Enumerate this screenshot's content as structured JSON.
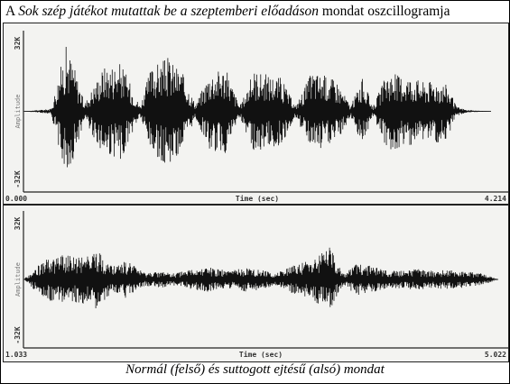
{
  "page_title": {
    "prefix": "A ",
    "italic": "Sok szép játékot mutattak be a szeptemberi előadáson",
    "suffix": " mondat oszcillogramja"
  },
  "caption": "Normál (felső) és suttogott ejtésű (alsó) mondat",
  "chart_data": [
    {
      "type": "line",
      "title": "",
      "xlabel": "Time (sec)",
      "ylabel": "Amplitude",
      "xlim": [
        0.0,
        4.214
      ],
      "ylim": [
        -32768,
        32768
      ],
      "x_tick_labels": [
        "0.000",
        "4.214"
      ],
      "y_tick_labels": [
        "32K",
        "-32K"
      ],
      "grid": false,
      "series": [
        {
          "x": [
            0.0,
            0.25,
            0.38,
            0.45,
            0.55,
            0.72,
            0.88,
            1.05,
            1.15,
            1.3,
            1.42,
            1.55,
            1.68,
            1.82,
            1.95,
            2.08,
            2.2,
            2.32,
            2.45,
            2.6,
            2.7,
            2.82,
            2.95,
            3.05,
            3.15,
            3.28,
            3.4,
            3.52,
            3.62,
            3.72,
            3.82,
            3.9,
            4.0,
            4.214
          ],
          "values": [
            0,
            1000,
            27000,
            20000,
            3000,
            18500,
            20000,
            2000,
            18000,
            22000,
            17000,
            3000,
            16000,
            18000,
            2000,
            17000,
            15000,
            14000,
            2000,
            16500,
            15000,
            13000,
            2000,
            14000,
            2000,
            16000,
            15000,
            14000,
            12000,
            13000,
            11000,
            2000,
            500,
            0
          ]
        }
      ]
    },
    {
      "type": "line",
      "title": "",
      "xlabel": "Time (sec)",
      "ylabel": "Amplitude",
      "xlim": [
        1.033,
        5.022
      ],
      "ylim": [
        -32768,
        32768
      ],
      "x_tick_labels": [
        "1.033",
        "5.022"
      ],
      "y_tick_labels": [
        "32K",
        "-32K"
      ],
      "grid": false,
      "series": [
        {
          "x": [
            1.033,
            1.2,
            1.35,
            1.5,
            1.65,
            1.78,
            1.9,
            2.05,
            2.18,
            2.3,
            2.45,
            2.6,
            2.75,
            2.9,
            3.02,
            3.15,
            3.3,
            3.45,
            3.6,
            3.72,
            3.85,
            3.98,
            4.1,
            4.22,
            4.35,
            4.48,
            4.6,
            4.72,
            4.85,
            5.022
          ],
          "values": [
            0,
            9000,
            12000,
            11000,
            14000,
            6000,
            9000,
            3000,
            4000,
            3000,
            5000,
            6000,
            4000,
            6000,
            5000,
            3000,
            7000,
            9000,
            16000,
            3000,
            8000,
            6000,
            4000,
            4500,
            5000,
            4000,
            5000,
            4000,
            3500,
            0
          ]
        }
      ]
    }
  ]
}
